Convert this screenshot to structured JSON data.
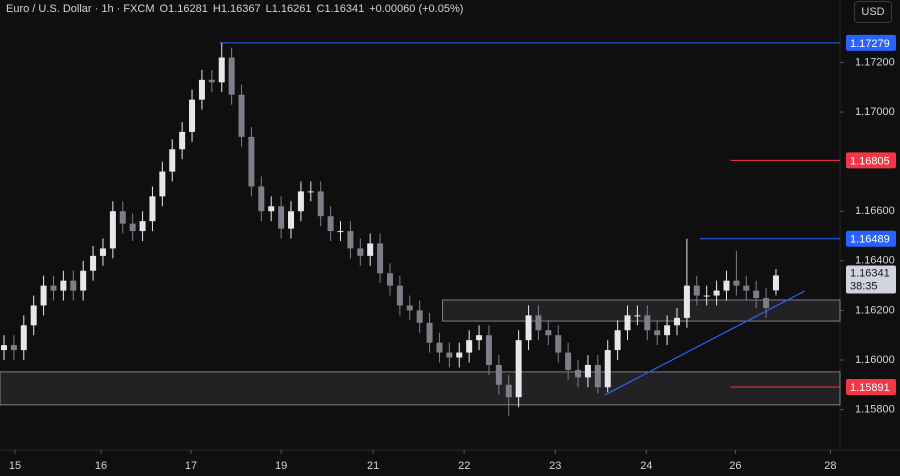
{
  "header": {
    "symbol": "Euro / U.S. Dollar · 1h · FXCM",
    "ohlc": [
      {
        "label": "O",
        "value": "1.16281"
      },
      {
        "label": "H",
        "value": "1.16367"
      },
      {
        "label": "L",
        "value": "1.16261"
      },
      {
        "label": "C",
        "value": "1.16341"
      }
    ],
    "change": "+0.00060 (+0.05%)",
    "currency": "USD"
  },
  "chart_data": {
    "type": "candlestick",
    "open": [
      1.1604,
      1.1606,
      1.1604,
      1.1614,
      1.1622,
      1.163,
      1.1628,
      1.1632,
      1.1628,
      1.1636,
      1.1642,
      1.1645,
      1.166,
      1.1655,
      1.1652,
      1.1656,
      1.1666,
      1.1676,
      1.1685,
      1.1692,
      1.1705,
      1.1713,
      1.1712,
      1.1722,
      1.1707,
      1.169,
      1.167,
      1.166,
      1.1662,
      1.1653,
      1.166,
      1.1668,
      1.1668,
      1.1658,
      1.1652,
      1.1652,
      1.1645,
      1.1642,
      1.1647,
      1.1635,
      1.163,
      1.1622,
      1.162,
      1.1615,
      1.1607,
      1.1603,
      1.1601,
      1.1603,
      1.1608,
      1.161,
      1.1598,
      1.159,
      1.1585,
      1.1608,
      1.1618,
      1.1612,
      1.161,
      1.1603,
      1.1596,
      1.1593,
      1.1598,
      1.1589,
      1.1604,
      1.1612,
      1.1618,
      1.1618,
      1.1612,
      1.161,
      1.1614,
      1.1617,
      1.163,
      1.1626,
      1.1626,
      1.1628,
      1.1632,
      1.163,
      1.1628,
      1.1625,
      1.16281
    ],
    "high": [
      1.161,
      1.161,
      1.1618,
      1.1626,
      1.1634,
      1.1634,
      1.1636,
      1.1636,
      1.164,
      1.1646,
      1.1649,
      1.1664,
      1.1664,
      1.1659,
      1.166,
      1.167,
      1.168,
      1.1689,
      1.1696,
      1.1709,
      1.1717,
      1.1717,
      1.17279,
      1.1726,
      1.1711,
      1.1694,
      1.1674,
      1.1666,
      1.1666,
      1.1664,
      1.1672,
      1.1672,
      1.1672,
      1.1662,
      1.1656,
      1.1656,
      1.1649,
      1.1651,
      1.1651,
      1.1639,
      1.1634,
      1.1626,
      1.1624,
      1.1619,
      1.1611,
      1.1607,
      1.1607,
      1.1612,
      1.1614,
      1.1614,
      1.1602,
      1.1594,
      1.1612,
      1.1622,
      1.1622,
      1.1616,
      1.1614,
      1.1607,
      1.16,
      1.1602,
      1.1602,
      1.1608,
      1.1616,
      1.1622,
      1.1622,
      1.1622,
      1.1616,
      1.1618,
      1.1621,
      1.16489,
      1.1634,
      1.163,
      1.1632,
      1.1636,
      1.1644,
      1.1634,
      1.1632,
      1.1629,
      1.16367
    ],
    "low": [
      1.16,
      1.16,
      1.16,
      1.161,
      1.1618,
      1.1624,
      1.1624,
      1.1624,
      1.1624,
      1.1632,
      1.1638,
      1.1641,
      1.1651,
      1.1648,
      1.1648,
      1.1652,
      1.1662,
      1.1672,
      1.1681,
      1.1688,
      1.1701,
      1.1708,
      1.1708,
      1.1703,
      1.1686,
      1.1666,
      1.1656,
      1.1656,
      1.1649,
      1.1649,
      1.1656,
      1.1664,
      1.1654,
      1.1648,
      1.1648,
      1.1641,
      1.1638,
      1.1638,
      1.1631,
      1.1626,
      1.1618,
      1.1616,
      1.1611,
      1.1603,
      1.1599,
      1.1597,
      1.1597,
      1.1599,
      1.1604,
      1.1594,
      1.1586,
      1.15775,
      1.1581,
      1.1604,
      1.1608,
      1.1606,
      1.1599,
      1.1592,
      1.1589,
      1.1589,
      1.15865,
      1.1587,
      1.16,
      1.1608,
      1.1614,
      1.1608,
      1.1606,
      1.1606,
      1.161,
      1.1613,
      1.1622,
      1.1622,
      1.1622,
      1.1624,
      1.1626,
      1.1624,
      1.1621,
      1.1617,
      1.16261
    ],
    "close": [
      1.1606,
      1.1604,
      1.1614,
      1.1622,
      1.163,
      1.1628,
      1.1632,
      1.1628,
      1.1636,
      1.1642,
      1.1645,
      1.166,
      1.1655,
      1.1652,
      1.1656,
      1.1666,
      1.1676,
      1.1685,
      1.1692,
      1.1705,
      1.1713,
      1.1712,
      1.1722,
      1.1707,
      1.169,
      1.167,
      1.166,
      1.1662,
      1.1653,
      1.166,
      1.1668,
      1.1668,
      1.1658,
      1.1652,
      1.1652,
      1.1645,
      1.1642,
      1.1647,
      1.1635,
      1.163,
      1.1622,
      1.162,
      1.1615,
      1.1607,
      1.1603,
      1.1601,
      1.1603,
      1.1608,
      1.161,
      1.1598,
      1.159,
      1.1585,
      1.1608,
      1.1618,
      1.1612,
      1.161,
      1.1603,
      1.1596,
      1.1593,
      1.1598,
      1.1589,
      1.1604,
      1.1612,
      1.1618,
      1.1618,
      1.1612,
      1.161,
      1.1614,
      1.1617,
      1.163,
      1.1626,
      1.1626,
      1.1628,
      1.1632,
      1.163,
      1.1628,
      1.1625,
      1.1621,
      1.16341
    ],
    "up_color": "#e6e7ea",
    "down_color": "#7c7f88",
    "xlim": [
      -0.404,
      84.47
    ],
    "ylim": [
      1.15637,
      1.17452
    ],
    "xticks": [
      {
        "value": 1.11,
        "label": "15"
      },
      {
        "value": 9.8,
        "label": "16"
      },
      {
        "value": 18.9,
        "label": "17"
      },
      {
        "value": 28.0,
        "label": "19"
      },
      {
        "value": 37.3,
        "label": "21"
      },
      {
        "value": 46.5,
        "label": "22"
      },
      {
        "value": 55.7,
        "label": "23"
      },
      {
        "value": 64.9,
        "label": "24"
      },
      {
        "value": 73.9,
        "label": "26"
      },
      {
        "value": 83.5,
        "label": "28"
      }
    ],
    "yticks": [
      {
        "value": 1.172,
        "label": "1.17200"
      },
      {
        "value": 1.17,
        "label": "1.17000"
      },
      {
        "value": 1.166,
        "label": "1.16600"
      },
      {
        "value": 1.164,
        "label": "1.16400"
      },
      {
        "value": 1.162,
        "label": "1.16200"
      },
      {
        "value": 1.16,
        "label": "1.16000"
      },
      {
        "value": 1.158,
        "label": "1.15800"
      }
    ],
    "levels": [
      {
        "value": 1.17279,
        "color": "#2962ff",
        "start": 21.8
      },
      {
        "value": 1.16805,
        "color": "#f23645",
        "start": 73.4
      },
      {
        "value": 1.16489,
        "color": "#2962ff",
        "start": 70.3
      },
      {
        "value": 1.15891,
        "color": "#f23645",
        "start": 73.4
      }
    ],
    "zones": [
      {
        "top": 1.16242,
        "bottom": 1.16157,
        "start": 44.3
      },
      {
        "top": 1.15952,
        "bottom": 1.15819,
        "start": -0.404
      }
    ],
    "trendline": {
      "x": [
        60.7,
        80.9
      ],
      "y": [
        1.15859,
        1.16278
      ],
      "color": "#2962ff"
    },
    "last_price": {
      "value": 1.16341,
      "countdown": "38:35"
    }
  }
}
